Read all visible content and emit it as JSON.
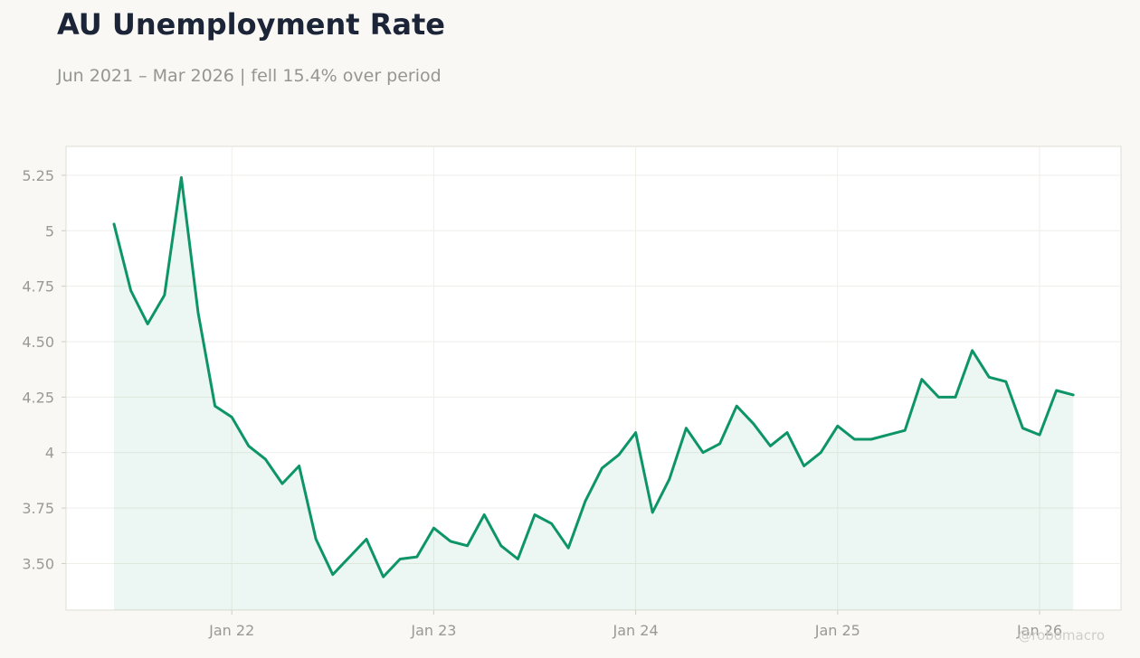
{
  "title": "AU Unemployment Rate",
  "subtitle": "Jun 2021 – Mar 2026 | fell 15.4% over period",
  "watermark": "@robomacro",
  "colors": {
    "line": "#0e9567",
    "fill": "#0e9567",
    "background": "#f9f8f4",
    "plot_background": "#ffffff"
  },
  "chart_data": {
    "type": "area",
    "title": "AU Unemployment Rate",
    "subtitle": "Jun 2021 – Mar 2026 | fell 15.4% over period",
    "xlabel": "",
    "ylabel": "",
    "grid": true,
    "ylim": [
      3.29,
      5.38
    ],
    "y_ticks": [
      3.5,
      3.75,
      4,
      4.25,
      4.5,
      4.75,
      5,
      5.25
    ],
    "y_tick_labels": [
      "3.50",
      "3.75",
      "4",
      "4.25",
      "4.50",
      "4.75",
      "5",
      "5.25"
    ],
    "x_ticks": [
      "2022-01",
      "2023-01",
      "2024-01",
      "2025-01",
      "2026-01"
    ],
    "x_tick_labels": [
      "Jan 22",
      "Jan 23",
      "Jan 24",
      "Jan 25",
      "Jan 26"
    ],
    "x": [
      "2021-06",
      "2021-07",
      "2021-08",
      "2021-09",
      "2021-10",
      "2021-11",
      "2021-12",
      "2022-01",
      "2022-02",
      "2022-03",
      "2022-04",
      "2022-05",
      "2022-06",
      "2022-07",
      "2022-08",
      "2022-09",
      "2022-10",
      "2022-11",
      "2022-12",
      "2023-01",
      "2023-02",
      "2023-03",
      "2023-04",
      "2023-05",
      "2023-06",
      "2023-07",
      "2023-08",
      "2023-09",
      "2023-10",
      "2023-11",
      "2023-12",
      "2024-01",
      "2024-02",
      "2024-03",
      "2024-04",
      "2024-05",
      "2024-06",
      "2024-07",
      "2024-08",
      "2024-09",
      "2024-10",
      "2024-11",
      "2024-12",
      "2025-01",
      "2025-02",
      "2025-03",
      "2025-04",
      "2025-05",
      "2025-06",
      "2025-07",
      "2025-08",
      "2025-09",
      "2025-10",
      "2025-11",
      "2025-12",
      "2026-01",
      "2026-02",
      "2026-03"
    ],
    "values": [
      5.03,
      4.73,
      4.58,
      4.71,
      5.24,
      4.63,
      4.21,
      4.16,
      4.03,
      3.97,
      3.86,
      3.94,
      3.61,
      3.45,
      3.53,
      3.61,
      3.44,
      3.52,
      3.53,
      3.66,
      3.6,
      3.58,
      3.72,
      3.58,
      3.52,
      3.72,
      3.68,
      3.57,
      3.78,
      3.93,
      3.99,
      4.09,
      3.73,
      3.88,
      4.11,
      4.0,
      4.04,
      4.21,
      4.13,
      4.03,
      4.09,
      3.94,
      4.0,
      4.12,
      4.06,
      4.06,
      4.08,
      4.1,
      4.33,
      4.25,
      4.25,
      4.46,
      4.34,
      4.32,
      4.11,
      4.08,
      4.28,
      4.26
    ]
  }
}
